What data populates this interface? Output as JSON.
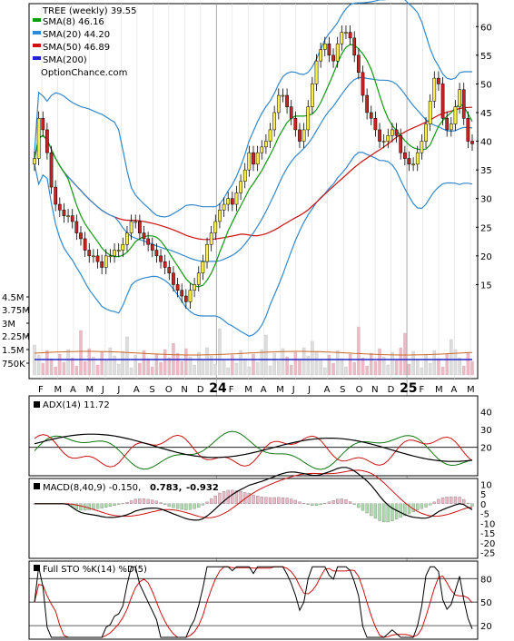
{
  "chart_data": {
    "type": "stock-chart",
    "main": {
      "title": "TREE (weekly) 39.55",
      "legend": [
        {
          "label": "SMA(8) 46.16",
          "color": "#119911"
        },
        {
          "label": "SMA(20) 44.20",
          "color": "#3388cc"
        },
        {
          "label": "SMA(50) 46.89",
          "color": "#cc1111"
        },
        {
          "label": "SMA(200)",
          "color": "#2222cc"
        }
      ],
      "watermark": "OptionChance.com",
      "price_ticks": [
        15,
        20,
        25,
        30,
        35,
        40,
        45,
        50,
        55,
        60
      ],
      "ylim": [
        10,
        64
      ],
      "volume_ticks": [
        "4.5M",
        "3.75M",
        "3M",
        "2.25M",
        "1.5M",
        "750K"
      ],
      "x_labels": [
        "F",
        "M",
        "A",
        "M",
        "J",
        "J",
        "A",
        "S",
        "O",
        "N",
        "D",
        "24",
        "F",
        "M",
        "A",
        "M",
        "J",
        "J",
        "A",
        "S",
        "O",
        "N",
        "D",
        "25",
        "F",
        "M",
        "A",
        "M"
      ],
      "close_series": [
        37,
        44,
        42,
        38,
        32,
        29,
        28,
        27,
        27,
        26,
        24,
        23,
        21,
        20,
        20,
        19,
        18,
        20,
        20,
        21,
        21,
        22,
        24,
        26,
        26,
        24,
        23,
        22,
        21,
        20,
        19,
        18,
        17,
        15,
        14,
        13,
        12,
        14,
        15,
        17,
        19,
        22,
        24,
        26,
        28,
        29,
        30,
        29,
        31,
        33,
        35,
        38,
        36,
        38,
        39,
        40,
        42,
        45,
        48,
        48,
        46,
        44,
        42,
        40,
        42,
        46,
        50,
        54,
        56,
        57,
        55,
        54,
        57,
        59,
        59,
        58,
        55,
        52,
        48,
        45,
        44,
        42,
        40,
        40,
        41,
        42,
        41,
        38,
        37,
        36,
        36,
        38,
        40,
        43,
        47,
        51,
        50,
        44,
        42,
        43,
        46,
        49,
        44,
        40,
        39.55
      ]
    },
    "adx": {
      "label": "ADX(14) 11.72",
      "ticks": [
        40,
        30,
        20
      ],
      "ylim": [
        5,
        48
      ]
    },
    "macd": {
      "label": "MACD(8,40,9) -0.150,",
      "value2": "0.783,",
      "value3": "-0.932",
      "value2_color": "#cc0000",
      "value3_color": "#2255aa",
      "ticks": [
        10,
        5,
        0,
        -5,
        -10,
        -15,
        -20,
        -25
      ],
      "ylim": [
        -27,
        12
      ]
    },
    "sto": {
      "label": "Full STO %K(14) %D(5)",
      "ticks": [
        80,
        50,
        20
      ],
      "ylim": [
        5,
        100
      ]
    }
  }
}
